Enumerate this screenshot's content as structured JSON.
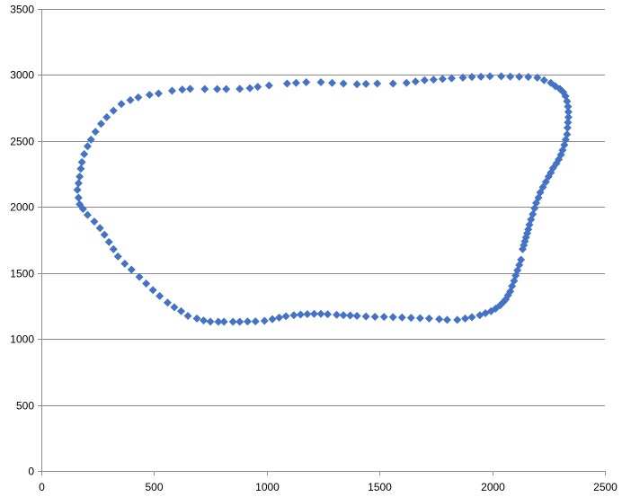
{
  "chart_data": {
    "type": "scatter",
    "title": "",
    "xlabel": "",
    "ylabel": "",
    "xlim": [
      0,
      2500
    ],
    "ylim": [
      0,
      3500
    ],
    "x_ticks": [
      "0",
      "500",
      "1000",
      "1500",
      "2000",
      "2500"
    ],
    "y_ticks": [
      "0",
      "500",
      "1000",
      "1500",
      "2000",
      "2500",
      "3000",
      "3500"
    ],
    "grid": "horizontal",
    "legend": "none",
    "marker": "diamond",
    "series": [
      {
        "color": "#4472C4",
        "points": [
          [
            160,
            2130
          ],
          [
            165,
            2180
          ],
          [
            170,
            2230
          ],
          [
            175,
            2290
          ],
          [
            180,
            2340
          ],
          [
            190,
            2400
          ],
          [
            205,
            2460
          ],
          [
            220,
            2510
          ],
          [
            240,
            2570
          ],
          [
            265,
            2630
          ],
          [
            290,
            2680
          ],
          [
            320,
            2730
          ],
          [
            355,
            2780
          ],
          [
            395,
            2810
          ],
          [
            430,
            2830
          ],
          [
            480,
            2850
          ],
          [
            520,
            2860
          ],
          [
            580,
            2880
          ],
          [
            625,
            2890
          ],
          [
            660,
            2895
          ],
          [
            725,
            2893
          ],
          [
            780,
            2893
          ],
          [
            820,
            2893
          ],
          [
            880,
            2895
          ],
          [
            925,
            2900
          ],
          [
            960,
            2910
          ],
          [
            1010,
            2920
          ],
          [
            1090,
            2935
          ],
          [
            1130,
            2940
          ],
          [
            1175,
            2945
          ],
          [
            1240,
            2945
          ],
          [
            1290,
            2940
          ],
          [
            1340,
            2935
          ],
          [
            1400,
            2930
          ],
          [
            1440,
            2932
          ],
          [
            1490,
            2935
          ],
          [
            1560,
            2935
          ],
          [
            1620,
            2940
          ],
          [
            1660,
            2950
          ],
          [
            1700,
            2960
          ],
          [
            1740,
            2965
          ],
          [
            1780,
            2970
          ],
          [
            1820,
            2975
          ],
          [
            1870,
            2980
          ],
          [
            1910,
            2985
          ],
          [
            1950,
            2987
          ],
          [
            1990,
            2990
          ],
          [
            2040,
            2990
          ],
          [
            2080,
            2988
          ],
          [
            2120,
            2987
          ],
          [
            2160,
            2985
          ],
          [
            2200,
            2980
          ],
          [
            2230,
            2960
          ],
          [
            2260,
            2940
          ],
          [
            2280,
            2915
          ],
          [
            2300,
            2895
          ],
          [
            2315,
            2870
          ],
          [
            2325,
            2840
          ],
          [
            2332,
            2800
          ],
          [
            2336,
            2760
          ],
          [
            2338,
            2720
          ],
          [
            2338,
            2680
          ],
          [
            2336,
            2640
          ],
          [
            2334,
            2600
          ],
          [
            2332,
            2550
          ],
          [
            2326,
            2510
          ],
          [
            2320,
            2470
          ],
          [
            2312,
            2430
          ],
          [
            2305,
            2395
          ],
          [
            2295,
            2360
          ],
          [
            2285,
            2330
          ],
          [
            2270,
            2295
          ],
          [
            2260,
            2260
          ],
          [
            2250,
            2230
          ],
          [
            2238,
            2190
          ],
          [
            2225,
            2150
          ],
          [
            2213,
            2110
          ],
          [
            2205,
            2070
          ],
          [
            2195,
            2030
          ],
          [
            2188,
            1990
          ],
          [
            2180,
            1945
          ],
          [
            2172,
            1905
          ],
          [
            2165,
            1865
          ],
          [
            2160,
            1830
          ],
          [
            2155,
            1800
          ],
          [
            2150,
            1770
          ],
          [
            2145,
            1740
          ],
          [
            2140,
            1710
          ],
          [
            2135,
            1680
          ],
          [
            2128,
            1600
          ],
          [
            2120,
            1560
          ],
          [
            2112,
            1520
          ],
          [
            2104,
            1480
          ],
          [
            2097,
            1440
          ],
          [
            2088,
            1400
          ],
          [
            2080,
            1360
          ],
          [
            2070,
            1330
          ],
          [
            2060,
            1300
          ],
          [
            2050,
            1280
          ],
          [
            2035,
            1255
          ],
          [
            2015,
            1230
          ],
          [
            1995,
            1210
          ],
          [
            1970,
            1195
          ],
          [
            1945,
            1180
          ],
          [
            1910,
            1165
          ],
          [
            1880,
            1155
          ],
          [
            1845,
            1145
          ],
          [
            1800,
            1145
          ],
          [
            1765,
            1150
          ],
          [
            1720,
            1155
          ],
          [
            1680,
            1158
          ],
          [
            1640,
            1160
          ],
          [
            1600,
            1163
          ],
          [
            1560,
            1165
          ],
          [
            1520,
            1167
          ],
          [
            1480,
            1168
          ],
          [
            1440,
            1170
          ],
          [
            1400,
            1175
          ],
          [
            1370,
            1178
          ],
          [
            1340,
            1180
          ],
          [
            1310,
            1183
          ],
          [
            1270,
            1187
          ],
          [
            1240,
            1190
          ],
          [
            1210,
            1190
          ],
          [
            1180,
            1188
          ],
          [
            1150,
            1185
          ],
          [
            1120,
            1180
          ],
          [
            1085,
            1172
          ],
          [
            1055,
            1162
          ],
          [
            1025,
            1150
          ],
          [
            990,
            1137
          ],
          [
            950,
            1133
          ],
          [
            915,
            1132
          ],
          [
            880,
            1130
          ],
          [
            850,
            1130
          ],
          [
            810,
            1130
          ],
          [
            785,
            1130
          ],
          [
            750,
            1131
          ],
          [
            720,
            1140
          ],
          [
            690,
            1155
          ],
          [
            650,
            1175
          ],
          [
            620,
            1210
          ],
          [
            590,
            1240
          ],
          [
            560,
            1275
          ],
          [
            525,
            1325
          ],
          [
            495,
            1370
          ],
          [
            465,
            1420
          ],
          [
            435,
            1470
          ],
          [
            400,
            1525
          ],
          [
            370,
            1570
          ],
          [
            340,
            1625
          ],
          [
            320,
            1680
          ],
          [
            300,
            1735
          ],
          [
            280,
            1790
          ],
          [
            260,
            1840
          ],
          [
            235,
            1890
          ],
          [
            205,
            1940
          ],
          [
            185,
            1985
          ],
          [
            170,
            2020
          ],
          [
            165,
            2070
          ]
        ]
      }
    ]
  }
}
